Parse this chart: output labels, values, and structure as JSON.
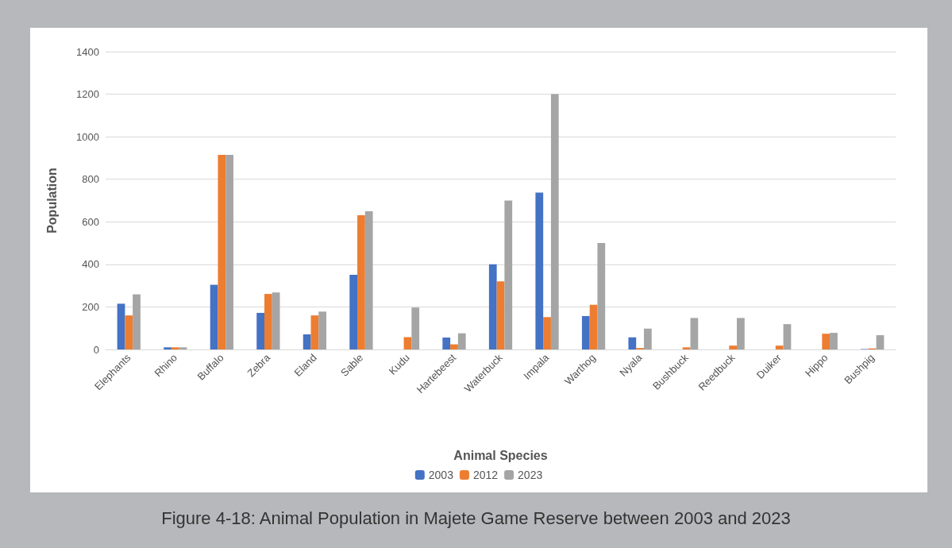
{
  "chart_data": {
    "type": "bar",
    "xlabel": "Animal Species",
    "ylabel": "Population",
    "annotations": [
      "Figure 4-18: Animal Population in Majete Game Reserve between 2003 and 2023"
    ],
    "categories": [
      "Elephants",
      "Rhino",
      "Buffalo",
      "Zebra",
      "Eland",
      "Sable",
      "Kudu",
      "Hartebeest",
      "Waterbuck",
      "Impala",
      "Warthog",
      "Nyala",
      "Bushbuck",
      "Reedbuck",
      "Duiker",
      "Hippo",
      "Bushpig"
    ],
    "series": [
      {
        "name": "2003",
        "color": "#4472c4",
        "values": [
          215,
          10,
          304,
          172,
          71,
          351,
          0,
          56,
          400,
          737,
          157,
          57,
          0,
          0,
          0,
          0,
          2
        ]
      },
      {
        "name": "2012",
        "color": "#ed7d31",
        "values": [
          160,
          10,
          915,
          261,
          160,
          631,
          58,
          24,
          320,
          152,
          210,
          7,
          10,
          18,
          18,
          74,
          5
        ]
      },
      {
        "name": "2023",
        "color": "#a5a5a5",
        "values": [
          259,
          10,
          915,
          268,
          178,
          650,
          197,
          76,
          700,
          1200,
          500,
          98,
          148,
          148,
          119,
          78,
          67
        ]
      }
    ],
    "ylim": [
      0,
      1400
    ],
    "yticks": [
      0,
      200,
      400,
      600,
      800,
      1000,
      1200,
      1400
    ],
    "grid": "y",
    "legend": "bottom"
  }
}
